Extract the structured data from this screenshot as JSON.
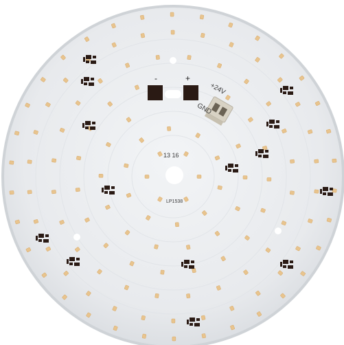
{
  "photo": {
    "board_color": "#eceef0",
    "led_color": "#e8c48e",
    "pad_color": "#2a1a14",
    "board_silk": "LP1538",
    "center_silk": "13 16",
    "pad_minus": "-",
    "pad_plus": "+",
    "connector_plus": "+24V",
    "connector_gnd": "GND"
  }
}
